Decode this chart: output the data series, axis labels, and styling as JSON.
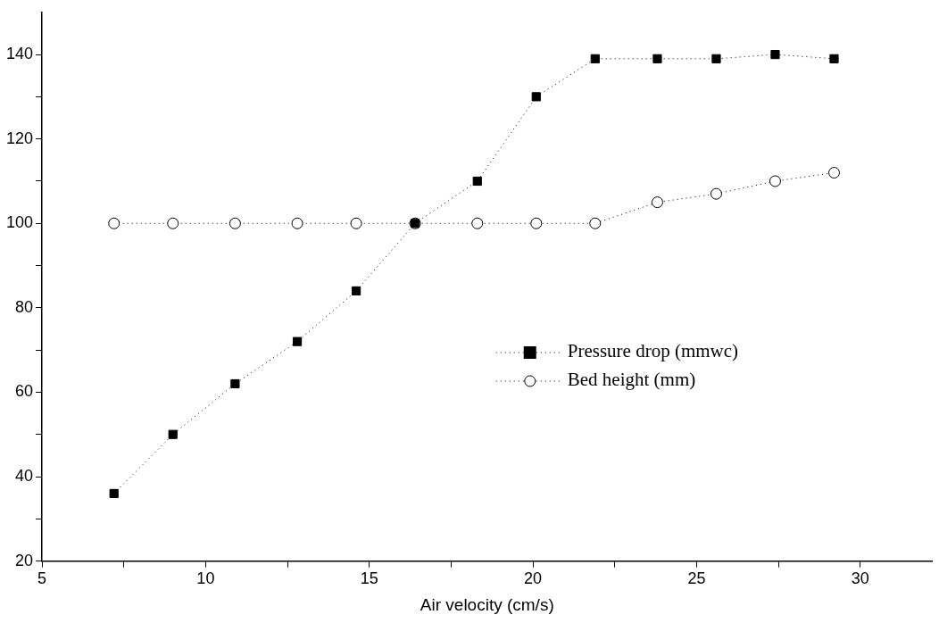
{
  "chart_data": {
    "type": "line",
    "xlabel": "Air velocity (cm/s)",
    "xlim": [
      5,
      32.2
    ],
    "ylim": [
      20,
      150
    ],
    "xticks": [
      5,
      {
        "value": 7.5,
        "label": null
      },
      10,
      {
        "value": 12.5,
        "label": null
      },
      15,
      {
        "value": 17.5,
        "label": null
      },
      20,
      {
        "value": 22.5,
        "label": null
      },
      25,
      {
        "value": 27.5,
        "label": null
      },
      30
    ],
    "yticks": [
      20,
      {
        "value": 30,
        "label": null
      },
      40,
      {
        "value": 50,
        "label": null
      },
      60,
      {
        "value": 70,
        "label": null
      },
      80,
      {
        "value": 90,
        "label": null
      },
      100,
      {
        "value": 110,
        "label": null
      },
      120,
      {
        "value": 130,
        "label": null
      },
      140
    ],
    "x": [
      7.2,
      9.0,
      10.9,
      12.8,
      14.6,
      16.4,
      18.3,
      20.1,
      21.9,
      23.8,
      25.6,
      27.4,
      29.2
    ],
    "series": [
      {
        "name": "Pressure drop (mmwc)",
        "color": "#000000",
        "marker": "square",
        "values": [
          36,
          50,
          62,
          72,
          84,
          100,
          110,
          130,
          139,
          139,
          139,
          140,
          139
        ]
      },
      {
        "name": "Bed height (mm)",
        "color": "#000000",
        "marker": "circle",
        "values": [
          100,
          100,
          100,
          100,
          100,
          100,
          100,
          100,
          100,
          105,
          107,
          110,
          112
        ]
      }
    ],
    "line_style": "dotted",
    "grid": false,
    "legend": "right"
  }
}
